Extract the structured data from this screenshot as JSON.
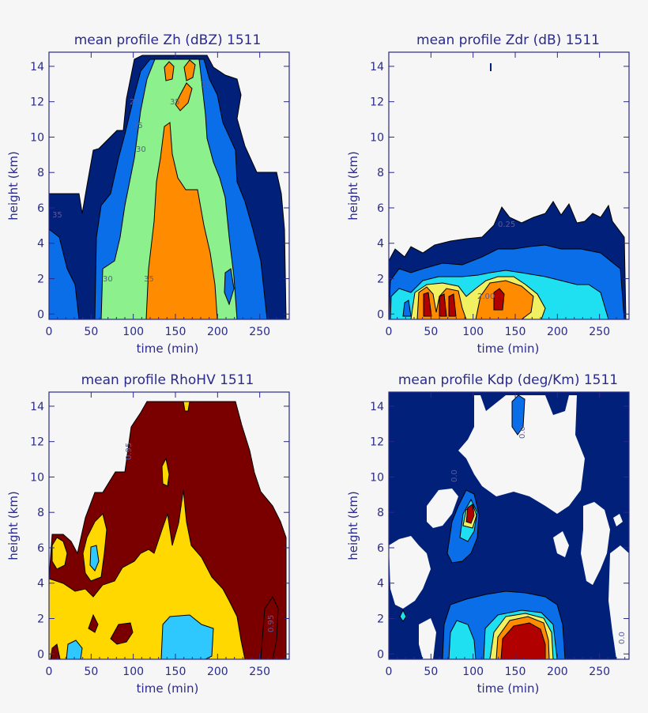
{
  "chart_data": [
    {
      "type": "heatmap",
      "id": "zh",
      "title": "mean profile Zh (dBZ) 1511",
      "xlabel": "time (min)",
      "ylabel": "height (km)",
      "xlim": [
        0,
        285
      ],
      "ylim": [
        -0.3,
        14.8
      ],
      "xticks": [
        "0",
        "50",
        "100",
        "150",
        "200",
        "250"
      ],
      "yticks": [
        "0",
        "2",
        "4",
        "6",
        "8",
        "10",
        "12",
        "14"
      ],
      "contour_labels": [
        "20",
        "25",
        "30",
        "35",
        "30",
        "35",
        "35",
        "35"
      ],
      "colors": {
        "c1": "#00207a",
        "c2": "#0a6ee8",
        "c3": "#8cf08c",
        "c4": "#ff8c00",
        "c5": "#ff6400"
      }
    },
    {
      "type": "heatmap",
      "id": "zdr",
      "title": "mean profile Zdr (dB) 1511",
      "xlabel": "time (min)",
      "ylabel": "height (km)",
      "xlim": [
        0,
        285
      ],
      "ylim": [
        -0.3,
        14.8
      ],
      "xticks": [
        "0",
        "50",
        "100",
        "150",
        "200",
        "250"
      ],
      "yticks": [
        "0",
        "2",
        "4",
        "6",
        "8",
        "10",
        "12",
        "14"
      ],
      "contour_labels": [
        "0.25",
        "2.00"
      ],
      "colors": {
        "c1": "#00207a",
        "c2": "#0a6ee8",
        "c3": "#1fe0f0",
        "c4": "#f0f060",
        "c5": "#ff8c00",
        "c6": "#b00000"
      }
    },
    {
      "type": "heatmap",
      "id": "rhohv",
      "title": "mean profile RhoHV 1511",
      "xlabel": "time (min)",
      "ylabel": "height (km)",
      "xlim": [
        0,
        285
      ],
      "ylim": [
        -0.3,
        14.8
      ],
      "xticks": [
        "0",
        "50",
        "100",
        "150",
        "200",
        "250"
      ],
      "yticks": [
        "0",
        "2",
        "4",
        "6",
        "8",
        "10",
        "12",
        "14"
      ],
      "contour_labels": [
        "0.95",
        "0.95"
      ],
      "colors": {
        "c1": "#7a0000",
        "c2": "#ffd800",
        "c3": "#2ec8ff",
        "c4": "#0a6ee8"
      }
    },
    {
      "type": "heatmap",
      "id": "kdp",
      "title": "mean profile Kdp (deg/Km) 1511",
      "xlabel": "time (min)",
      "ylabel": "height (km)",
      "xlim": [
        0,
        285
      ],
      "ylim": [
        -0.3,
        14.8
      ],
      "xticks": [
        "0",
        "50",
        "100",
        "150",
        "200",
        "250"
      ],
      "yticks": [
        "0",
        "2",
        "4",
        "6",
        "8",
        "10",
        "12",
        "14"
      ],
      "contour_labels": [
        "0.0",
        "0.0",
        "0.0"
      ],
      "colors": {
        "c1": "#00207a",
        "c2": "#0a6ee8",
        "c3": "#1fe0f0",
        "c4": "#f0f060",
        "c5": "#ff8c00",
        "c6": "#b00000"
      }
    }
  ]
}
